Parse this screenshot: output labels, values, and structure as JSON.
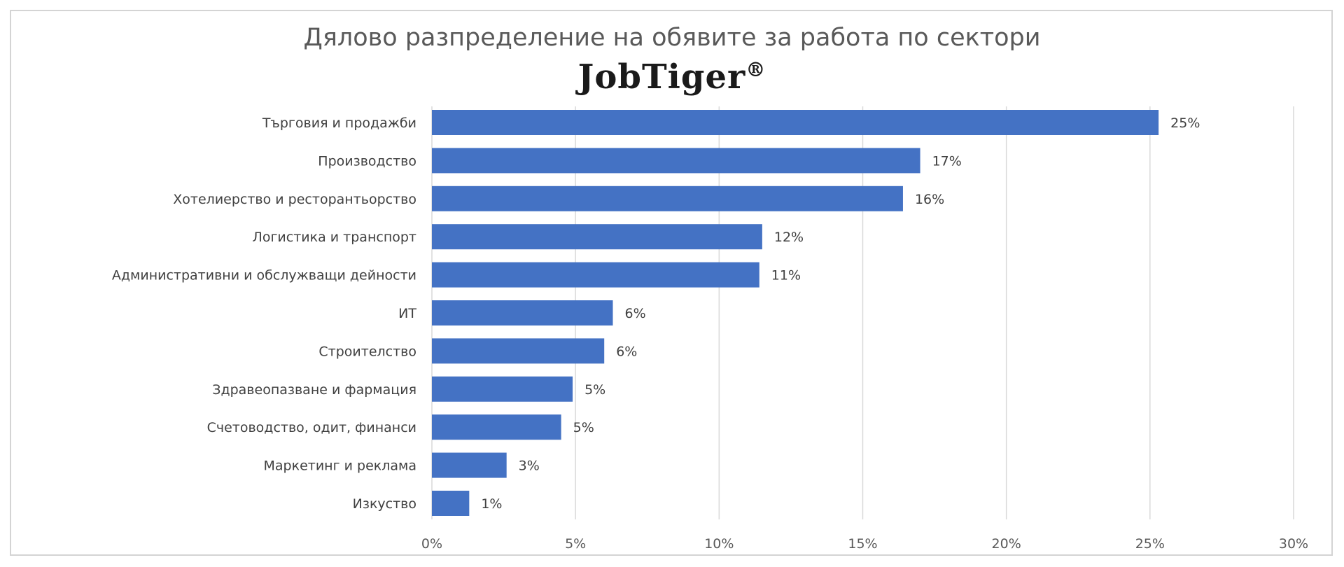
{
  "chart_data": {
    "type": "bar",
    "orientation": "horizontal",
    "title": "Дялово разпределение на обявите за работа по сектори",
    "logo_text": "JobTiger",
    "logo_mark": "®",
    "categories": [
      "Търговия и продажби",
      "Производство",
      "Хотелиерство и ресторантьорство",
      "Логистика и транспорт",
      "Административни и обслужващи дейности",
      "ИТ",
      "Строителство",
      "Здравеопазване и фармация",
      "Счетоводство, одит, финанси",
      "Маркетинг и реклама",
      "Изкуство"
    ],
    "values": [
      25.3,
      17.0,
      16.4,
      11.5,
      11.4,
      6.3,
      6.0,
      4.9,
      4.5,
      2.6,
      1.3
    ],
    "data_labels": [
      "25%",
      "17%",
      "16%",
      "12%",
      "11%",
      "6%",
      "6%",
      "5%",
      "5%",
      "3%",
      "1%"
    ],
    "xlim": [
      0,
      30
    ],
    "x_ticks": [
      0,
      5,
      10,
      15,
      20,
      25,
      30
    ],
    "x_tick_labels": [
      "0%",
      "5%",
      "10%",
      "15%",
      "20%",
      "25%",
      "30%"
    ],
    "xlabel": "",
    "ylabel": "",
    "grid": true,
    "legend": "none",
    "bar_color": "#4472c4",
    "grid_color": "#d9d9d9"
  }
}
